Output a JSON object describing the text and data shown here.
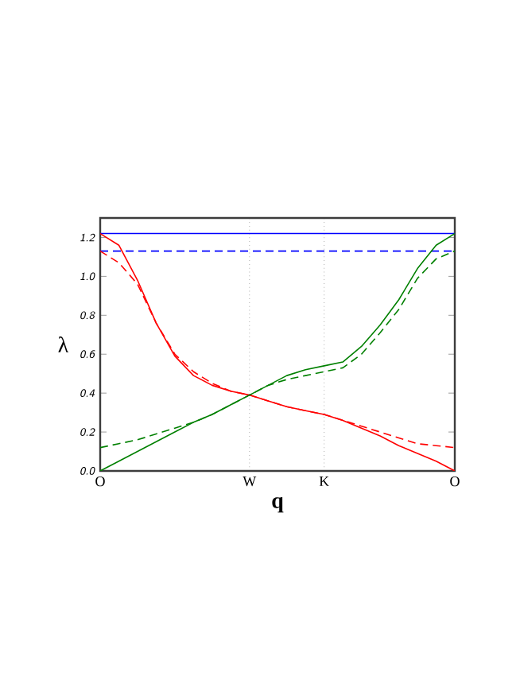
{
  "chart_data": {
    "type": "line",
    "xlabel": "**q**",
    "ylabel": "λ",
    "categories": [
      "O",
      null,
      null,
      null,
      null,
      null,
      null,
      null,
      "W",
      null,
      null,
      null,
      "K",
      null,
      null,
      null,
      null,
      null,
      null,
      "O"
    ],
    "ylim": [
      0,
      1.3
    ],
    "yticks": [
      {
        "value": 0,
        "label": "0.0"
      },
      {
        "value": 0.2,
        "label": "0.2"
      },
      {
        "value": 0.4,
        "label": "0.4"
      },
      {
        "value": 0.6,
        "label": "0.6"
      },
      {
        "value": 0.8,
        "label": "0.8"
      },
      {
        "value": 1.0,
        "label": "1.0"
      },
      {
        "value": 1.2,
        "label": "1.2"
      }
    ],
    "grid": "x",
    "marker": "none",
    "series": [
      {
        "color": "#0000ff",
        "line_style": "solid",
        "values": [
          1.22,
          1.22,
          1.22,
          1.22,
          1.22,
          1.22,
          1.22,
          1.22,
          1.22,
          1.22,
          1.22,
          1.22,
          1.22,
          1.22,
          1.22,
          1.22,
          1.22,
          1.22,
          1.22,
          1.22
        ]
      },
      {
        "color": "#0000ff",
        "line_style": "dashed",
        "values": [
          1.13,
          1.13,
          1.13,
          1.13,
          1.13,
          1.13,
          1.13,
          1.13,
          1.13,
          1.13,
          1.13,
          1.13,
          1.13,
          1.13,
          1.13,
          1.13,
          1.13,
          1.13,
          1.13,
          1.13
        ]
      },
      {
        "color": "#ff0000",
        "line_style": "solid",
        "values": [
          1.22,
          1.16,
          0.98,
          0.76,
          0.59,
          0.49,
          0.44,
          0.41,
          0.39,
          0.36,
          0.33,
          0.31,
          0.29,
          0.26,
          0.22,
          0.18,
          0.13,
          0.09,
          0.05,
          0
        ]
      },
      {
        "color": "#ff0000",
        "line_style": "dashed",
        "values": [
          1.13,
          1.07,
          0.96,
          0.76,
          0.6,
          0.51,
          0.45,
          0.41,
          0.39,
          0.36,
          0.33,
          0.31,
          0.29,
          0.26,
          0.23,
          0.2,
          0.17,
          0.14,
          0.13,
          0.12
        ]
      },
      {
        "color": "#008000",
        "line_style": "solid",
        "values": [
          0,
          0.05,
          0.1,
          0.15,
          0.2,
          0.25,
          0.29,
          0.34,
          0.39,
          0.44,
          0.49,
          0.52,
          0.54,
          0.56,
          0.64,
          0.75,
          0.88,
          1.04,
          1.16,
          1.22
        ]
      },
      {
        "color": "#008000",
        "line_style": "dashed",
        "values": [
          0.12,
          0.14,
          0.16,
          0.19,
          0.22,
          0.25,
          0.29,
          0.34,
          0.39,
          0.44,
          0.47,
          0.49,
          0.51,
          0.53,
          0.6,
          0.71,
          0.83,
          0.99,
          1.09,
          1.13
        ]
      }
    ]
  }
}
